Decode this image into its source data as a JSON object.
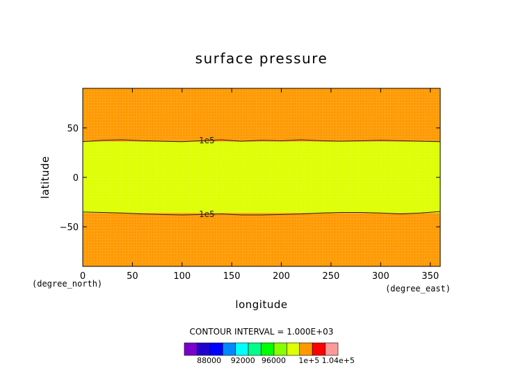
{
  "chart_data": {
    "type": "heatmap",
    "title": "surface pressure",
    "xlabel": "longitude",
    "ylabel": "latitude",
    "x_unit": "(degree_east)",
    "y_unit": "(degree_north)",
    "xlim": [
      0,
      360
    ],
    "ylim": [
      -90,
      90
    ],
    "x_ticks": [
      0,
      50,
      100,
      150,
      200,
      250,
      300,
      350
    ],
    "y_ticks": [
      -50,
      0,
      50
    ],
    "x_tick_labels": [
      "0",
      "50",
      "100",
      "150",
      "200",
      "250",
      "300",
      "350"
    ],
    "y_tick_labels": [
      "−50",
      "0",
      "50"
    ],
    "contour_interval_text": "CONTOUR INTERVAL = 1.000E+03",
    "contour_label": "1e5",
    "contour_label_lon": 125,
    "regions": [
      {
        "value_range": [
          101000,
          102000
        ],
        "color": "#ff9900",
        "lat_range": [
          36,
          90
        ]
      },
      {
        "value_range": [
          100000,
          101000
        ],
        "color": "#ddff00",
        "lat_range": [
          -36,
          36
        ]
      },
      {
        "value_range": [
          101000,
          102000
        ],
        "color": "#ff9900",
        "lat_range": [
          -90,
          -36
        ]
      }
    ],
    "contour_north": {
      "value": 100000,
      "lon": [
        0,
        20,
        40,
        60,
        80,
        100,
        120,
        140,
        160,
        180,
        200,
        220,
        240,
        260,
        280,
        300,
        320,
        340,
        360
      ],
      "lat": [
        36,
        37.5,
        38,
        37,
        36.5,
        36,
        37,
        38,
        36.5,
        37.5,
        37,
        38,
        37,
        36.5,
        37,
        37.5,
        37,
        36.5,
        36
      ]
    },
    "contour_south": {
      "value": 100000,
      "lon": [
        0,
        20,
        40,
        60,
        80,
        100,
        120,
        140,
        160,
        180,
        200,
        220,
        240,
        260,
        280,
        300,
        320,
        340,
        360
      ],
      "lat": [
        -35,
        -35.5,
        -36,
        -37,
        -37.5,
        -38,
        -37.5,
        -37,
        -38,
        -38,
        -37.5,
        -37,
        -36,
        -35.5,
        -35.5,
        -36,
        -37,
        -36,
        -34.5
      ]
    },
    "colorbar": {
      "colors": [
        "#7b00cc",
        "#2200cc",
        "#0000ff",
        "#0088ff",
        "#00ffff",
        "#00ff88",
        "#00ff00",
        "#88ff00",
        "#ddff00",
        "#ff9900",
        "#ff0000",
        "#ff9999"
      ],
      "tick_labels": [
        "88000",
        "92000",
        "96000",
        "1e+5",
        "1.04e+5"
      ],
      "tick_positions": [
        0.08,
        0.3,
        0.5,
        0.73,
        0.92
      ]
    }
  }
}
